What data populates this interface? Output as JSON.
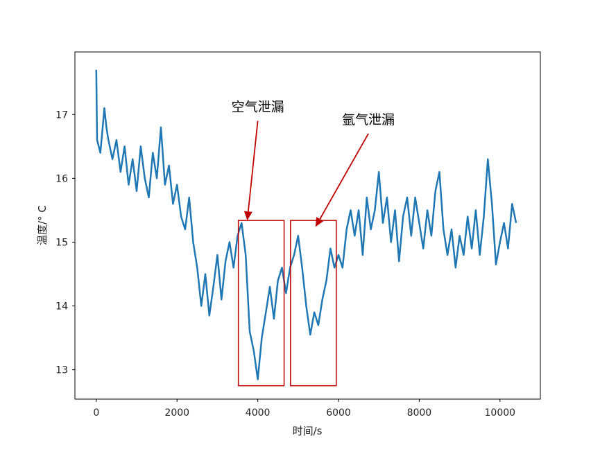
{
  "chart_data": {
    "type": "line",
    "title": "",
    "xlabel": "时间/s",
    "ylabel": "温度/° C",
    "xlim": [
      -530,
      11000
    ],
    "ylim": [
      12.54,
      17.98
    ],
    "xticks": [
      0,
      2000,
      4000,
      6000,
      8000,
      10000
    ],
    "xtick_labels": [
      "0",
      "2000",
      "4000",
      "6000",
      "8000",
      "10000"
    ],
    "yticks": [
      13,
      14,
      15,
      16,
      17
    ],
    "ytick_labels": [
      "13",
      "14",
      "15",
      "16",
      "17"
    ],
    "grid": false,
    "line_color": "#1f77b4",
    "annotation_color": "#c00000",
    "x": [
      0,
      20,
      100,
      200,
      250,
      300,
      400,
      500,
      600,
      700,
      800,
      900,
      1000,
      1100,
      1200,
      1300,
      1400,
      1500,
      1600,
      1700,
      1800,
      1900,
      2000,
      2100,
      2200,
      2300,
      2400,
      2500,
      2600,
      2700,
      2800,
      2900,
      3000,
      3100,
      3200,
      3300,
      3400,
      3500,
      3600,
      3700,
      3800,
      3900,
      4000,
      4100,
      4200,
      4300,
      4400,
      4500,
      4600,
      4700,
      4800,
      4900,
      5000,
      5100,
      5200,
      5300,
      5400,
      5500,
      5600,
      5700,
      5800,
      5900,
      6000,
      6100,
      6200,
      6300,
      6400,
      6500,
      6600,
      6700,
      6800,
      6900,
      7000,
      7100,
      7200,
      7300,
      7400,
      7500,
      7600,
      7700,
      7800,
      7900,
      8000,
      8100,
      8200,
      8300,
      8400,
      8500,
      8600,
      8700,
      8800,
      8900,
      9000,
      9100,
      9200,
      9300,
      9400,
      9500,
      9600,
      9700,
      9800,
      9900,
      10000,
      10100,
      10200,
      10300,
      10400
    ],
    "y": [
      17.7,
      16.6,
      16.4,
      17.1,
      16.8,
      16.6,
      16.3,
      16.6,
      16.1,
      16.5,
      15.9,
      16.3,
      15.8,
      16.5,
      16.0,
      15.7,
      16.4,
      16.0,
      16.8,
      15.9,
      16.2,
      15.6,
      15.9,
      15.4,
      15.2,
      15.7,
      15.0,
      14.6,
      14.0,
      14.5,
      13.85,
      14.3,
      14.8,
      14.1,
      14.7,
      15.0,
      14.6,
      15.1,
      15.3,
      14.8,
      13.6,
      13.3,
      12.85,
      13.5,
      13.9,
      14.3,
      13.8,
      14.4,
      14.6,
      14.2,
      14.6,
      14.8,
      15.1,
      14.6,
      14.0,
      13.55,
      13.9,
      13.7,
      14.1,
      14.4,
      14.9,
      14.6,
      14.8,
      14.6,
      15.2,
      15.5,
      15.1,
      15.5,
      14.8,
      15.7,
      15.2,
      15.5,
      16.1,
      15.3,
      15.7,
      15.0,
      15.5,
      14.7,
      15.4,
      15.7,
      15.1,
      15.7,
      15.3,
      14.9,
      15.5,
      15.1,
      15.8,
      16.1,
      15.2,
      14.8,
      15.2,
      14.6,
      15.1,
      14.8,
      15.4,
      14.9,
      15.5,
      14.8,
      15.4,
      16.3,
      15.6,
      14.65,
      15.0,
      15.3,
      14.9,
      15.6,
      15.3
    ],
    "annotations": [
      {
        "text": "空气泄漏",
        "box_x": [
          3519,
          4652
        ],
        "box_y": [
          12.75,
          15.34
        ],
        "arrow_from": [
          4000,
          16.9
        ],
        "arrow_to": [
          3740,
          15.34
        ]
      },
      {
        "text": "氩气泄漏",
        "box_x": [
          4811,
          5945
        ],
        "box_y": [
          12.75,
          15.34
        ],
        "arrow_from": [
          6740,
          16.7
        ],
        "arrow_to": [
          5430,
          15.24
        ]
      }
    ]
  }
}
